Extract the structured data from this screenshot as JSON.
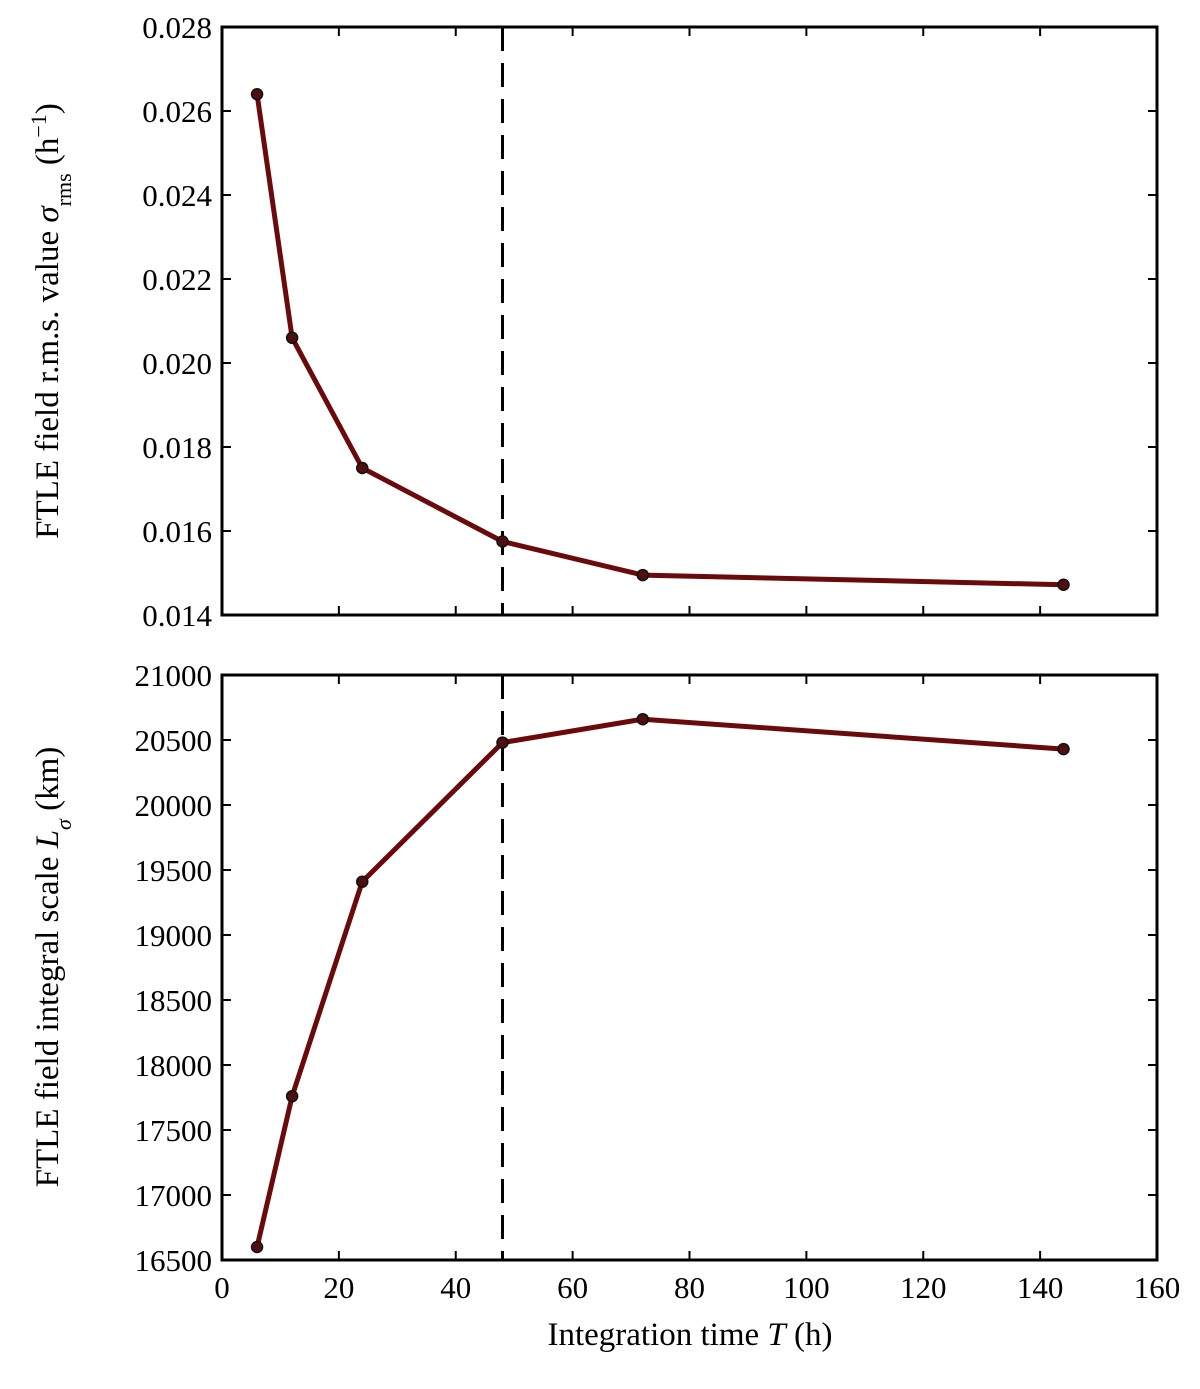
{
  "colors": {
    "series": "#6b0a0a",
    "marker": "#4d0f0f",
    "reference_line": "#000000"
  },
  "chart_data": [
    {
      "type": "line",
      "panel": "top",
      "ylabel": "FTLE field r.m.s. value σ_rms (h⁻¹)",
      "ylabel_parts": {
        "prefix": "FTLE field r.m.s. value ",
        "symbol": "σ",
        "subscript": "rms",
        "unit_open": " (h",
        "unit_exp": "−1",
        "unit_close": ")"
      },
      "xlim": [
        0,
        160
      ],
      "ylim": [
        0.014,
        0.028
      ],
      "xticks": [
        0,
        20,
        40,
        60,
        80,
        100,
        120,
        140,
        160
      ],
      "yticks": [
        "0.014",
        "0.016",
        "0.018",
        "0.020",
        "0.022",
        "0.024",
        "0.026",
        "0.028"
      ],
      "x": [
        6,
        12,
        24,
        48,
        72,
        144
      ],
      "y": [
        0.0264,
        0.0206,
        0.0175,
        0.01575,
        0.01495,
        0.01472
      ],
      "vline_x": 48,
      "grid": false
    },
    {
      "type": "line",
      "panel": "bottom",
      "ylabel": "FTLE field integral scale L_σ (km)",
      "ylabel_parts": {
        "prefix": "FTLE field integral scale ",
        "symbol": "L",
        "subscript": "σ",
        "unit": " (km)"
      },
      "xlabel": "Integration time T (h)",
      "xlabel_parts": {
        "prefix": "Integration time ",
        "symbol": "T",
        "unit": " (h)"
      },
      "xlim": [
        0,
        160
      ],
      "ylim": [
        16500,
        21000
      ],
      "xticks": [
        "0",
        "20",
        "40",
        "60",
        "80",
        "100",
        "120",
        "140",
        "160"
      ],
      "yticks": [
        "16500",
        "17000",
        "17500",
        "18000",
        "18500",
        "19000",
        "19500",
        "20000",
        "20500",
        "21000"
      ],
      "x": [
        6,
        12,
        24,
        48,
        72,
        144
      ],
      "y": [
        16600,
        17760,
        19410,
        20480,
        20660,
        20430
      ],
      "vline_x": 48,
      "grid": false
    }
  ]
}
